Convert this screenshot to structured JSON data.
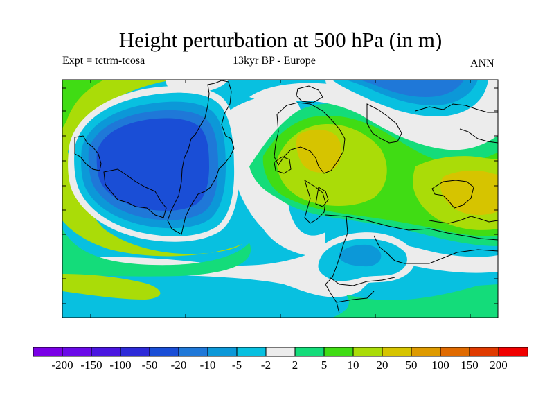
{
  "title": "Height perturbation at 500 hPa (in m)",
  "subtitle_left": "Expt = tctrm-tcosa",
  "subtitle_center": "13kyr BP - Europe",
  "subtitle_right": "ANN",
  "colorbar": {
    "colors": [
      "#7a00e6",
      "#6a0ae8",
      "#4a16e0",
      "#2d2ad8",
      "#1a4ed6",
      "#1f78d8",
      "#0c98d8",
      "#08c0e0",
      "#ececec",
      "#14dc7a",
      "#40dc14",
      "#aadc08",
      "#d6c400",
      "#de9a00",
      "#e06a00",
      "#e03a00",
      "#f00000"
    ],
    "labels": [
      "-200",
      "-150",
      "-100",
      "-50",
      "-20",
      "-10",
      "-5",
      "-2",
      "2",
      "5",
      "10",
      "20",
      "50",
      "100",
      "150",
      "200"
    ]
  }
}
